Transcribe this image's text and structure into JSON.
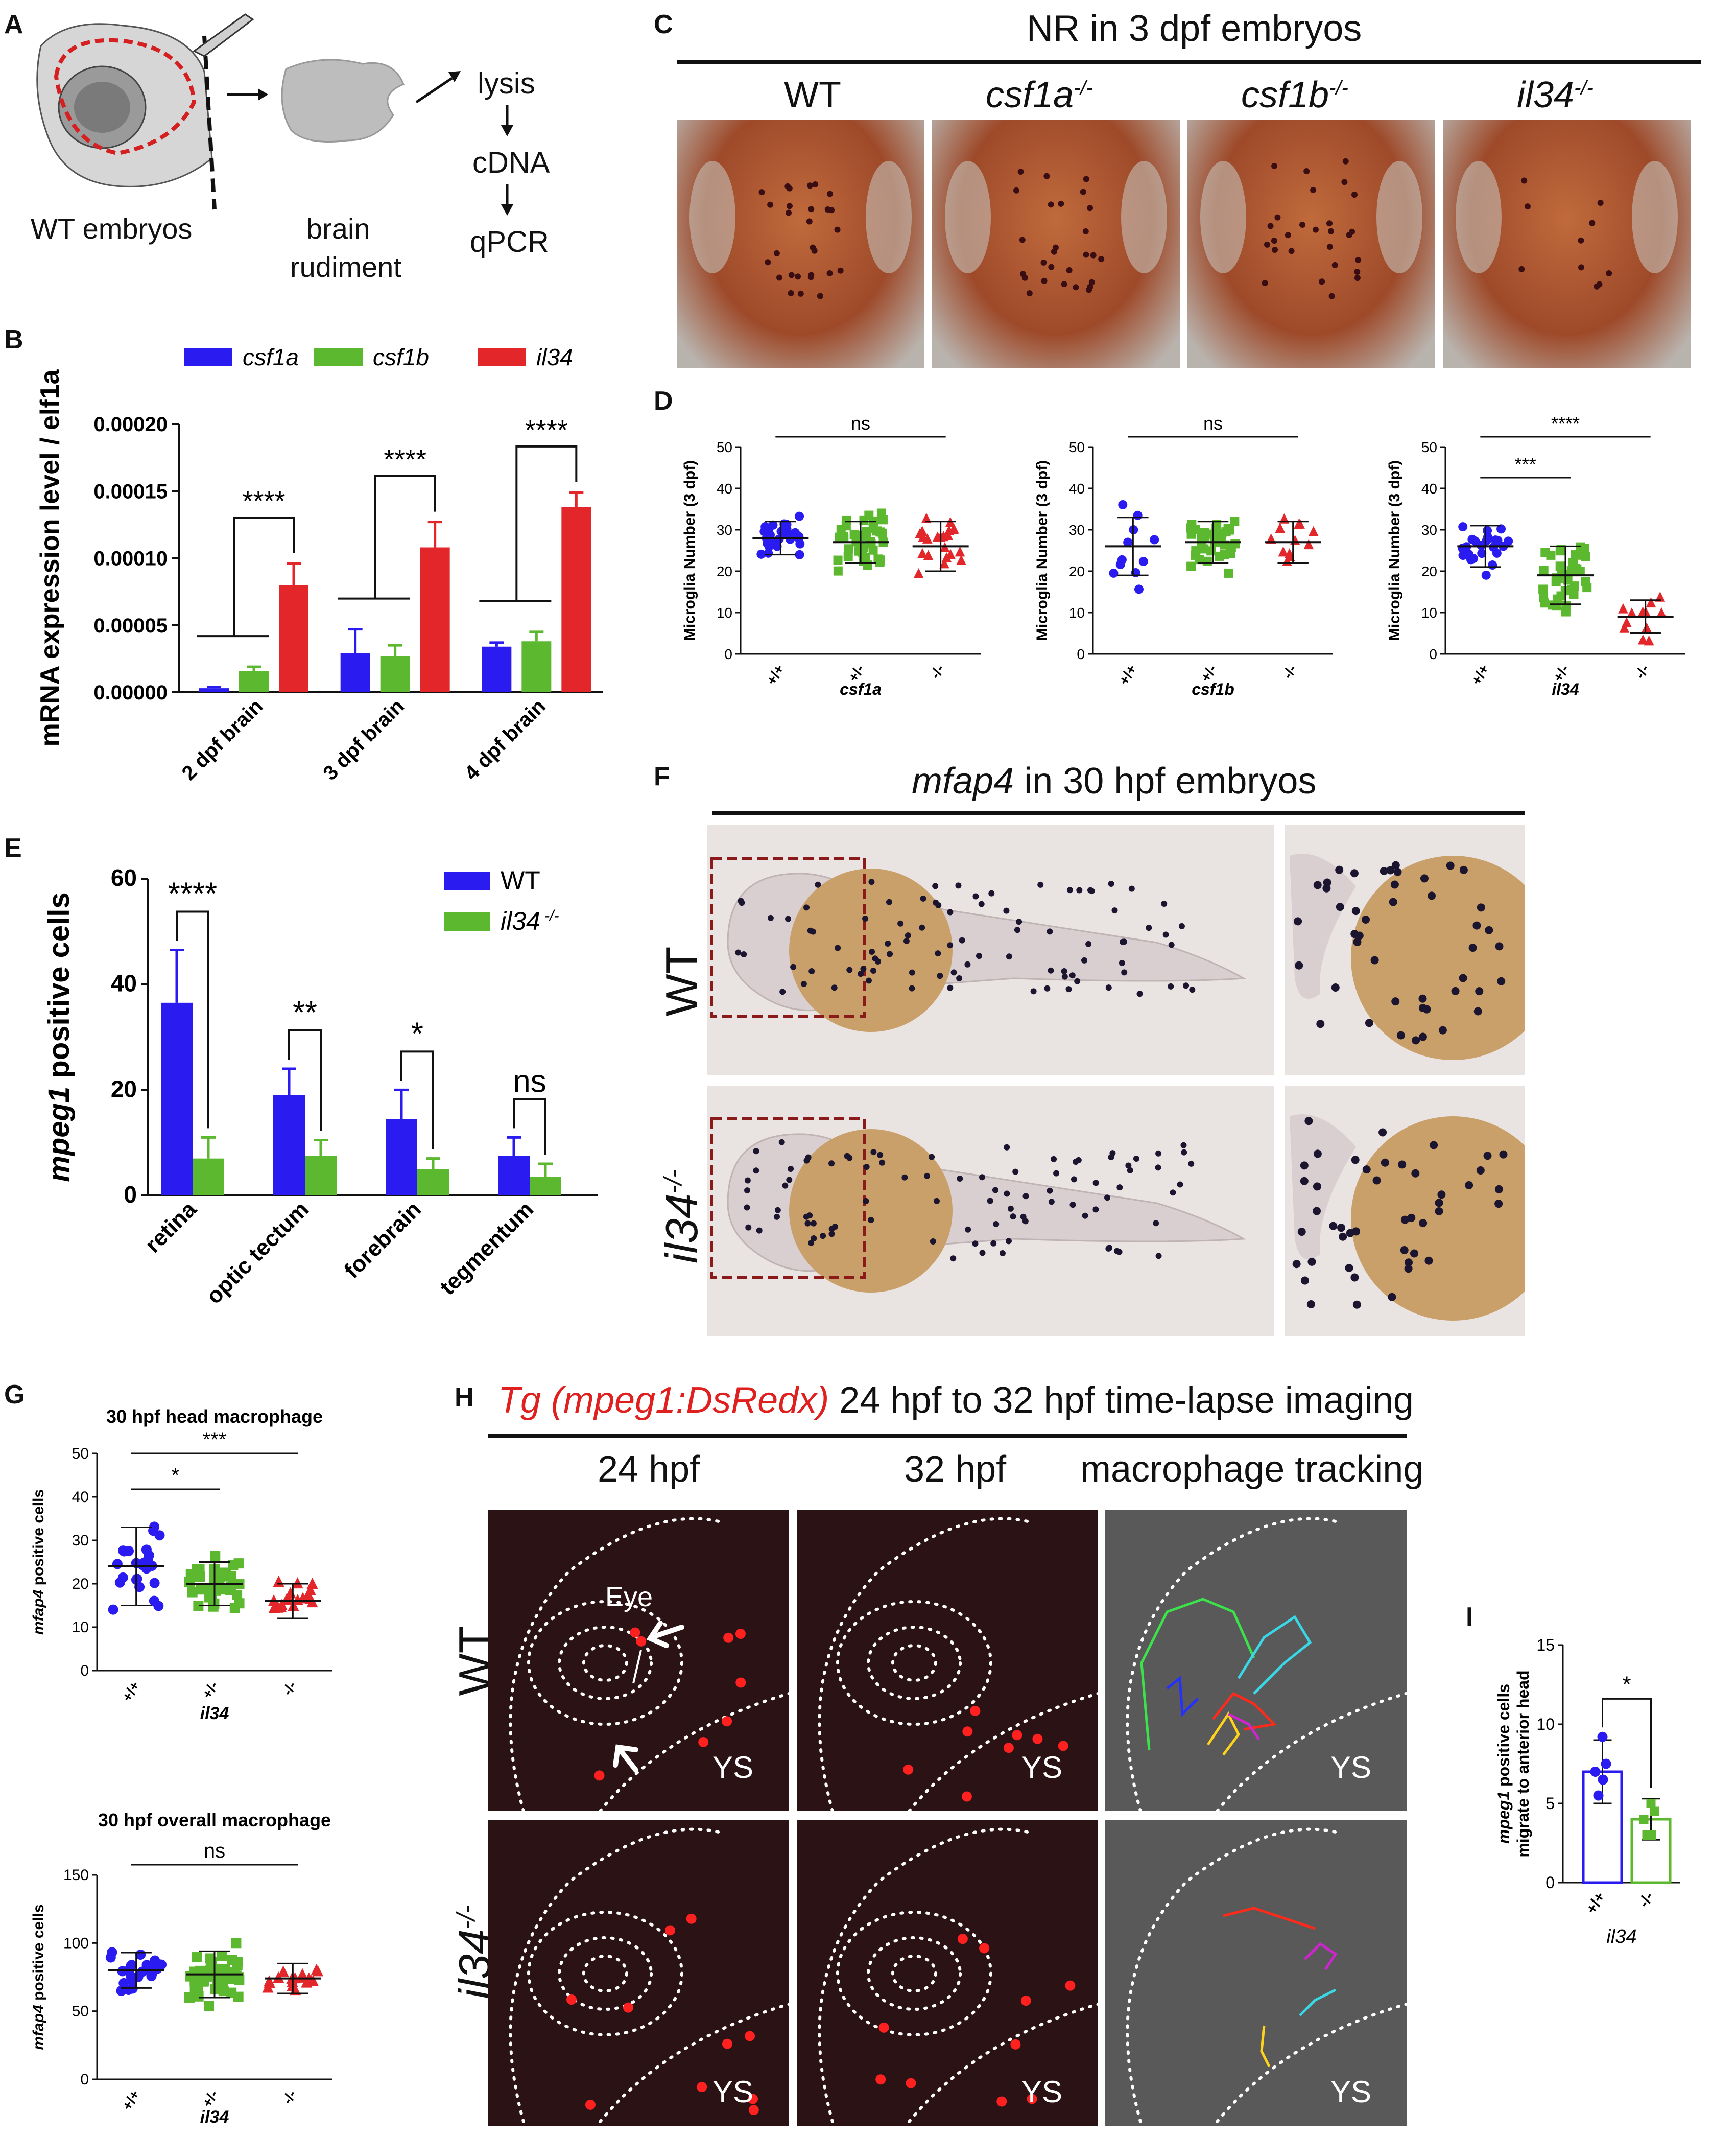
{
  "panels": {
    "A": {
      "label": "A",
      "caption_embryos": "WT embryos",
      "caption_rudiment_1": "brain",
      "caption_rudiment_2": "rudiment",
      "step1": "lysis",
      "step2": "cDNA",
      "step3": "qPCR"
    },
    "B": {
      "label": "B"
    },
    "C": {
      "label": "C",
      "title": "NR in 3 dpf embryos",
      "genotypes": [
        "WT",
        "csf1a",
        "csf1b",
        "il34"
      ],
      "genotype_sup": [
        "",
        "-/-",
        "-/-",
        "-/-"
      ]
    },
    "D": {
      "label": "D"
    },
    "E": {
      "label": "E"
    },
    "F": {
      "label": "F",
      "title_gene": "mfap4",
      "title_rest": " in 30 hpf embryos",
      "row1": "WT",
      "row2": "il34",
      "row2_sup": "-/-"
    },
    "G": {
      "label": "G"
    },
    "H": {
      "label": "H",
      "title_red": "Tg (mpeg1:DsRedx)",
      "title_rest": " 24 hpf to 32 hpf time-lapse imaging",
      "col1": "24 hpf",
      "col2": "32 hpf",
      "col3": "macrophage tracking",
      "row1": "WT",
      "row2": "il34",
      "row2_sup": "-/-",
      "eye": "Eye",
      "ys": "YS"
    },
    "I": {
      "label": "I"
    }
  },
  "chart_data": [
    {
      "id": "B",
      "type": "bar",
      "ylabel": "mRNA expression level / elf1a",
      "categories": [
        "2 dpf brain",
        "3 dpf brain",
        "4 dpf brain"
      ],
      "ylim": [
        0,
        0.0002
      ],
      "yticks": [
        "0.00000",
        "0.00005",
        "0.00010",
        "0.00015",
        "0.00020"
      ],
      "series": [
        {
          "name": "csf1a",
          "color": "#2a1bf0",
          "values": [
            3e-06,
            2.9e-05,
            3.4e-05
          ],
          "err": [
            1e-06,
            1.8e-05,
            3e-06
          ]
        },
        {
          "name": "csf1b",
          "color": "#5cb82e",
          "values": [
            1.6e-05,
            2.7e-05,
            3.8e-05
          ],
          "err": [
            3e-06,
            8e-06,
            7e-06
          ]
        },
        {
          "name": "il34",
          "color": "#e3262a",
          "values": [
            8e-05,
            0.000108,
            0.000138
          ],
          "err": [
            1.6e-05,
            1.9e-05,
            1.1e-05
          ]
        }
      ],
      "annotations": [
        "****",
        "****",
        "****"
      ]
    },
    {
      "id": "D1",
      "type": "scatter",
      "xlabel": "csf1a",
      "ylabel": "Microglia Number (3 dpf)",
      "categories": [
        "+/+",
        "+/-",
        "-/-"
      ],
      "ylim": [
        0,
        50
      ],
      "yticks": [
        "0",
        "10",
        "20",
        "30",
        "40",
        "50"
      ],
      "means": [
        28,
        27,
        26
      ],
      "sd": [
        4,
        5,
        6
      ],
      "n": [
        32,
        40,
        22
      ],
      "colors": [
        "#2a1bf0",
        "#5cb82e",
        "#e3262a"
      ],
      "markers": [
        "circle",
        "square",
        "triangle"
      ],
      "annotations": [
        {
          "text": "ns",
          "from": 0,
          "to": 2
        }
      ]
    },
    {
      "id": "D2",
      "type": "scatter",
      "xlabel": "csf1b",
      "ylabel": "Microglia Number (3 dpf)",
      "categories": [
        "+/+",
        "+/-",
        "-/-"
      ],
      "ylim": [
        0,
        50
      ],
      "yticks": [
        "0",
        "10",
        "20",
        "30",
        "40",
        "50"
      ],
      "means": [
        26,
        27,
        27
      ],
      "sd": [
        7,
        5,
        5
      ],
      "n": [
        11,
        38,
        12
      ],
      "colors": [
        "#2a1bf0",
        "#5cb82e",
        "#e3262a"
      ],
      "markers": [
        "circle",
        "square",
        "triangle"
      ],
      "annotations": [
        {
          "text": "ns",
          "from": 0,
          "to": 2
        }
      ]
    },
    {
      "id": "D3",
      "type": "scatter",
      "xlabel": "il34",
      "ylabel": "Microglia Number (3 dpf)",
      "categories": [
        "+/+",
        "+/-",
        "-/-"
      ],
      "ylim": [
        0,
        50
      ],
      "yticks": [
        "0",
        "10",
        "20",
        "30",
        "40",
        "50"
      ],
      "means": [
        26,
        19,
        9
      ],
      "sd": [
        5,
        7,
        4
      ],
      "n": [
        26,
        38,
        12
      ],
      "colors": [
        "#2a1bf0",
        "#5cb82e",
        "#e3262a"
      ],
      "markers": [
        "circle",
        "square",
        "triangle"
      ],
      "annotations": [
        {
          "text": "***",
          "from": 0,
          "to": 1
        },
        {
          "text": "****",
          "from": 0,
          "to": 2
        }
      ]
    },
    {
      "id": "E",
      "type": "bar",
      "ylabel": "mpeg1 positive cells",
      "categories": [
        "retina",
        "optic tectum",
        "forebrain",
        "tegmentum"
      ],
      "ylim": [
        0,
        60
      ],
      "yticks": [
        "0",
        "20",
        "40",
        "60"
      ],
      "series": [
        {
          "name": "WT",
          "color": "#2a1bf0",
          "values": [
            36.5,
            19,
            14.5,
            7.5
          ],
          "err": [
            10,
            5,
            5.5,
            3.5
          ]
        },
        {
          "name": "il34",
          "sup": "-/-",
          "color": "#5cb82e",
          "values": [
            7,
            7.5,
            5,
            3.5
          ],
          "err": [
            4,
            3,
            2,
            2.5
          ]
        }
      ],
      "annotations": [
        "****",
        "**",
        "*",
        "ns"
      ]
    },
    {
      "id": "G1",
      "type": "scatter",
      "title": "30 hpf head macrophage",
      "xlabel": "il34",
      "ylabel": "mfap4 positive cells",
      "categories": [
        "+/+",
        "+/-",
        "-/-"
      ],
      "ylim": [
        0,
        50
      ],
      "yticks": [
        "0",
        "10",
        "20",
        "30",
        "40",
        "50"
      ],
      "means": [
        24,
        20,
        16
      ],
      "sd": [
        9,
        5,
        4
      ],
      "n": [
        24,
        38,
        18
      ],
      "colors": [
        "#2a1bf0",
        "#5cb82e",
        "#e3262a"
      ],
      "markers": [
        "circle",
        "square",
        "triangle"
      ],
      "annotations": [
        {
          "text": "*",
          "from": 0,
          "to": 1
        },
        {
          "text": "***",
          "from": 0,
          "to": 2
        }
      ]
    },
    {
      "id": "G2",
      "type": "scatter",
      "title": "30 hpf overall macrophage",
      "xlabel": "il34",
      "ylabel": "mfap4 positive cells",
      "categories": [
        "+/+",
        "+/-",
        "-/-"
      ],
      "ylim": [
        0,
        150
      ],
      "yticks": [
        "0",
        "50",
        "100",
        "150"
      ],
      "means": [
        80,
        77,
        74
      ],
      "sd": [
        13,
        17,
        11
      ],
      "n": [
        24,
        38,
        18
      ],
      "colors": [
        "#2a1bf0",
        "#5cb82e",
        "#e3262a"
      ],
      "markers": [
        "circle",
        "square",
        "triangle"
      ],
      "annotations": [
        {
          "text": "ns",
          "from": 0,
          "to": 2
        }
      ]
    },
    {
      "id": "I",
      "type": "bar",
      "xlabel": "il34",
      "ylabel": "mpeg1 positive cells migrate to anterior head",
      "categories": [
        "+/+",
        "-/-"
      ],
      "ylim": [
        0,
        15
      ],
      "yticks": [
        "0",
        "5",
        "10",
        "15"
      ],
      "series": [
        {
          "name": "",
          "values": [
            7,
            4
          ],
          "err": [
            2,
            1.3
          ],
          "colors": [
            "#2a1bf0",
            "#5cb82e"
          ]
        }
      ],
      "points": [
        [
          9.2,
          7.5,
          7,
          6.5,
          5.5
        ],
        [
          5,
          4.5,
          4,
          3,
          3
        ]
      ],
      "annotations": [
        "*"
      ]
    }
  ]
}
